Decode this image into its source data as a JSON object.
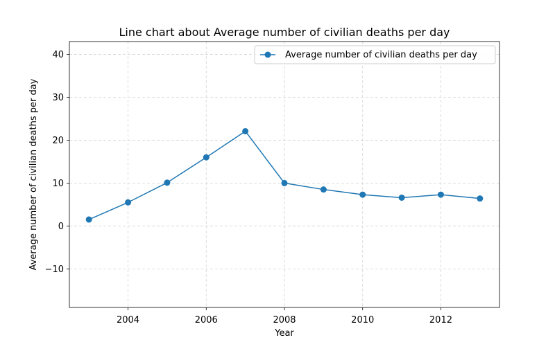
{
  "chart_data": {
    "type": "line",
    "title": "Line chart about Average number of civilian deaths per day",
    "xlabel": "Year",
    "ylabel": "Average number of civilian deaths per day",
    "x": [
      2003,
      2004,
      2005,
      2006,
      2007,
      2008,
      2009,
      2010,
      2011,
      2012,
      2013
    ],
    "series": [
      {
        "name": "Average number of civilian deaths per day",
        "values": [
          1.5,
          5.5,
          10.1,
          16.0,
          22.1,
          10.0,
          8.5,
          7.3,
          6.6,
          7.3,
          6.4
        ],
        "color": "#1f77b4",
        "marker": "circle"
      }
    ],
    "xlim": [
      2002.5,
      2013.5
    ],
    "ylim": [
      -19,
      43
    ],
    "xticks": [
      2004,
      2006,
      2008,
      2010,
      2012
    ],
    "yticks": [
      -10,
      0,
      10,
      20,
      30,
      40
    ],
    "xtick_labels": [
      "2004",
      "2006",
      "2008",
      "2010",
      "2012"
    ],
    "ytick_labels": [
      "−10",
      "0",
      "10",
      "20",
      "30",
      "40"
    ],
    "grid": true,
    "legend_position": "top-right"
  }
}
